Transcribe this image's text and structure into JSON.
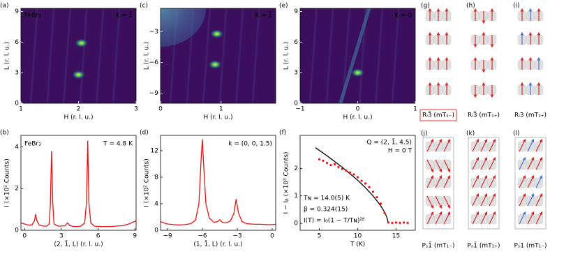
{
  "chart_data": [
    {
      "type": "heatmap",
      "label": "(a)",
      "annotations": [
        "FeBr₃",
        "K = 1̄"
      ],
      "xlabel": "H (r. l. u.)",
      "ylabel": "L (r. l. u.)",
      "xlim": [
        1,
        3
      ],
      "xticks": [
        1,
        2,
        3
      ],
      "ylim": [
        0,
        9.3
      ],
      "yticks": [
        0,
        3,
        6,
        9
      ],
      "spots": [
        {
          "x": 2.05,
          "y": 5.9
        },
        {
          "x": 2.0,
          "y": 2.8
        }
      ]
    },
    {
      "type": "line",
      "label": "(b)",
      "annotations": [
        "FeBr₃",
        "T = 4.8 K"
      ],
      "xlabel": "(2, 1̄, L) (r. l. u.)",
      "ylabel": "I (×10² Counts)",
      "color": "#ee1111",
      "xlim": [
        -0.3,
        9.1
      ],
      "xticks": [
        0,
        3,
        6,
        9
      ],
      "ylim": [
        0,
        4.55
      ],
      "yticks": [
        0,
        2,
        4
      ],
      "x": [
        -0.3,
        0,
        0.3,
        0.6,
        0.8,
        0.9,
        1.0,
        1.2,
        1.5,
        1.8,
        2.0,
        2.1,
        2.2,
        2.3,
        2.4,
        2.7,
        3.0,
        3.3,
        3.5,
        3.7,
        4.0,
        4.3,
        4.6,
        4.9,
        5.05,
        5.15,
        5.25,
        5.4,
        5.7,
        6.0,
        6.5,
        7.0,
        7.5,
        8.0,
        8.5,
        9.1
      ],
      "values": [
        0.35,
        0.3,
        0.25,
        0.25,
        0.45,
        0.77,
        0.45,
        0.25,
        0.2,
        0.2,
        0.3,
        1.2,
        3.8,
        1.3,
        0.3,
        0.2,
        0.2,
        0.22,
        0.35,
        0.22,
        0.18,
        0.18,
        0.2,
        0.35,
        1.3,
        4.3,
        1.3,
        0.35,
        0.2,
        0.18,
        0.18,
        0.18,
        0.2,
        0.22,
        0.3,
        0.45
      ]
    },
    {
      "type": "heatmap",
      "label": "(c)",
      "annotations": [
        "K = 1̄"
      ],
      "xlabel": "H (r. l. u.)",
      "ylabel": "L (r. l. u.)",
      "xlim": [
        0,
        1.9
      ],
      "xticks": [
        0,
        1
      ],
      "ylim": [
        -10,
        -0.7
      ],
      "yticks": [
        {
          "value": -3,
          "label": "−3"
        },
        {
          "value": -6,
          "label": "−6"
        },
        {
          "value": -9,
          "label": "−9"
        }
      ],
      "spots": [
        {
          "x": 0.93,
          "y": -3.2
        },
        {
          "x": 0.9,
          "y": -6.2
        }
      ]
    },
    {
      "type": "line",
      "label": "(d)",
      "annotations": [
        "k = (0, 0, 1.5)"
      ],
      "xlabel": "(1, 1̄, L) (r. l. u.)",
      "ylabel": "I (×10² Counts)",
      "color": "#ee1111",
      "xlim": [
        -9.6,
        0.3
      ],
      "xticks": [
        {
          "value": -9,
          "label": "−9"
        },
        {
          "value": -6,
          "label": "−6"
        },
        {
          "value": -3,
          "label": "−3"
        },
        0
      ],
      "ylim": [
        0,
        14.3
      ],
      "yticks": [
        0,
        4,
        8,
        12
      ],
      "x": [
        -9.6,
        -9.3,
        -9,
        -8.5,
        -8,
        -7.5,
        -7,
        -6.6,
        -6.3,
        -6.1,
        -6,
        -5.9,
        -5.7,
        -5.4,
        -5,
        -4.7,
        -4.5,
        -4.3,
        -4,
        -3.6,
        -3.3,
        -3.1,
        -2.9,
        -2.6,
        -2.2,
        -1.5,
        -1,
        -0.5,
        0,
        0.3
      ],
      "values": [
        1.3,
        1.1,
        0.95,
        0.85,
        0.8,
        0.85,
        1.0,
        1.5,
        4,
        11,
        13.7,
        10,
        4,
        1.8,
        1.2,
        1.3,
        1.6,
        1.2,
        1.1,
        1.4,
        2.5,
        4.7,
        2.6,
        1.3,
        1.0,
        0.9,
        0.9,
        0.85,
        0.85,
        0.9
      ]
    },
    {
      "type": "heatmap",
      "label": "(e)",
      "annotations": [
        "K = 0"
      ],
      "xlabel": "H (r. l. u.)",
      "ylabel": "L (r. l. u.)",
      "xlim": [
        -1,
        1
      ],
      "xticks": [
        {
          "value": -1,
          "label": "−1"
        },
        0,
        1
      ],
      "ylim": [
        0,
        9.3
      ],
      "yticks": [
        0,
        3,
        6,
        9
      ],
      "spots": [
        {
          "x": 0.0,
          "y": 3.0
        }
      ]
    },
    {
      "type": "scatter",
      "label": "(f)",
      "annotations": [
        "Q = (2, 1̄, 4.5)",
        "H = 0 T",
        "Tɴ = 14.0(5) K",
        "β = 0.324(15)",
        "I(T) = I₀(1 − T/Tɴ)²ᵝ"
      ],
      "xlabel": "T (K)",
      "ylabel": "I − Iᵦ (×10³ Counts)",
      "color": "#ee1111",
      "xlim": [
        2.5,
        17.5
      ],
      "xticks": [
        5,
        10,
        15
      ],
      "ylim": [
        -0.25,
        3.2
      ],
      "yticks": [
        0,
        1,
        2
      ],
      "x": [
        5,
        5.5,
        6,
        6.5,
        7,
        7.5,
        8,
        8.5,
        9,
        9.5,
        10,
        10.5,
        11,
        11.5,
        12,
        12.5,
        13,
        13.5,
        14,
        14.5,
        15,
        15.5,
        16,
        16.5
      ],
      "values": [
        2.33,
        2.28,
        2.2,
        2.12,
        2.15,
        2.05,
        1.98,
        1.92,
        1.85,
        1.78,
        1.68,
        1.55,
        1.45,
        1.32,
        1.15,
        0.95,
        0.72,
        0.38,
        0.03,
        0.02,
        0.03,
        0.02,
        0.03,
        0.02
      ],
      "fit": {
        "color": "#000000",
        "x": [
          4.5,
          6,
          8,
          10,
          11,
          12,
          13,
          13.5,
          13.8,
          14
        ],
        "values": [
          2.75,
          2.46,
          2.04,
          1.57,
          1.3,
          1.0,
          0.64,
          0.41,
          0.22,
          0
        ]
      }
    }
  ],
  "structures": [
    {
      "label": "(g)",
      "caption": "Rᵢ3̄ (mT₁₋)"
    },
    {
      "label": "(h)",
      "caption": "Rᵢ3̄ (mT₁₊)"
    },
    {
      "label": "(i)",
      "caption": "Rᵢ3 (mT₁₊)"
    },
    {
      "label": "(j)",
      "caption": "Pₛ1̄ (mT₁₋)"
    },
    {
      "label": "(k)",
      "caption": "Pₛ1̄ (mT₁₊)"
    },
    {
      "label": "(l)",
      "caption": "Pₛ1 (mT₁₋)"
    }
  ]
}
